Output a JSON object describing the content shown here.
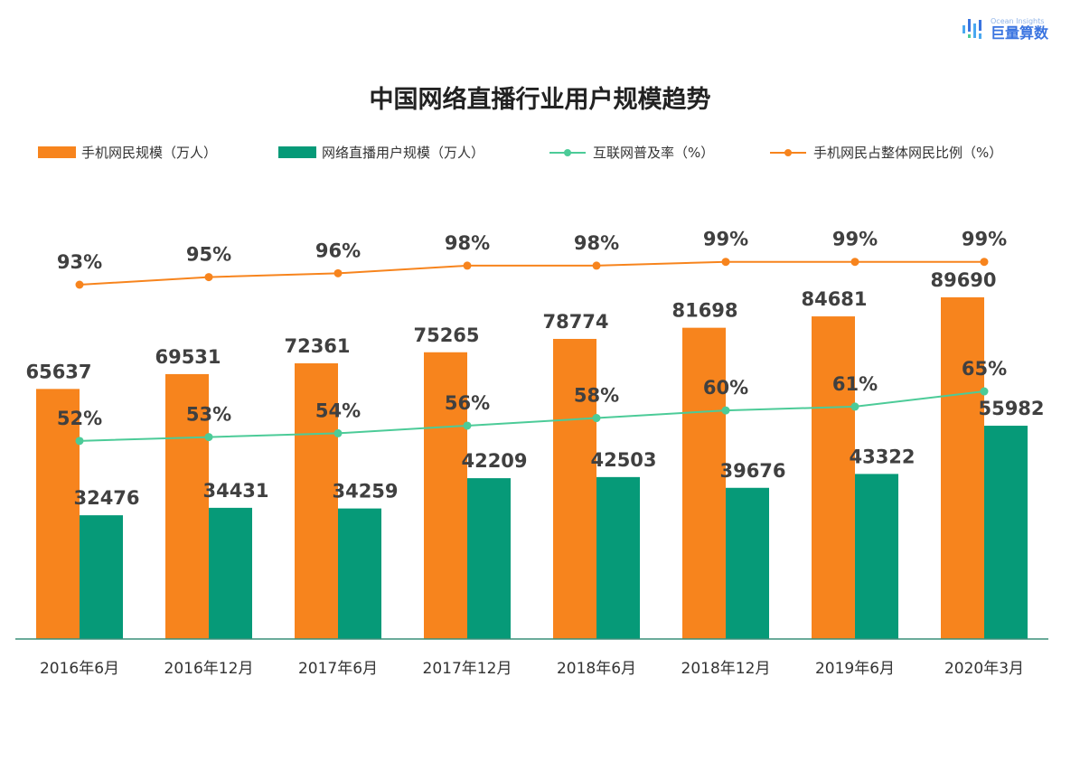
{
  "logo": {
    "sub": "Ocean Insights",
    "main": "巨量算数"
  },
  "chart_data": {
    "type": "bar",
    "title": "中国网络直播行业用户规模趋势",
    "categories": [
      "2016年6月",
      "2016年12月",
      "2017年6月",
      "2017年12月",
      "2018年6月",
      "2018年12月",
      "2019年6月",
      "2020年3月"
    ],
    "series": [
      {
        "name": "手机网民规模（万人）",
        "type": "bar",
        "color": "#f7841d",
        "values": [
          65637,
          69531,
          72361,
          75265,
          78774,
          81698,
          84681,
          89690
        ]
      },
      {
        "name": "网络直播用户规模（万人）",
        "type": "bar",
        "color": "#069a78",
        "values": [
          32476,
          34431,
          34259,
          42209,
          42503,
          39676,
          43322,
          55982
        ]
      },
      {
        "name": "互联网普及率（%）",
        "type": "line",
        "color": "#4ccb98",
        "values": [
          52,
          53,
          54,
          56,
          58,
          60,
          61,
          65
        ]
      },
      {
        "name": "手机网民占整体网民比例（%）",
        "type": "line",
        "color": "#f7841d",
        "values": [
          93,
          95,
          96,
          98,
          98,
          99,
          99,
          99
        ]
      }
    ],
    "ylim": [
      0,
      100000
    ],
    "y2lim": [
      0,
      100
    ],
    "grid": false,
    "legend": "top"
  }
}
